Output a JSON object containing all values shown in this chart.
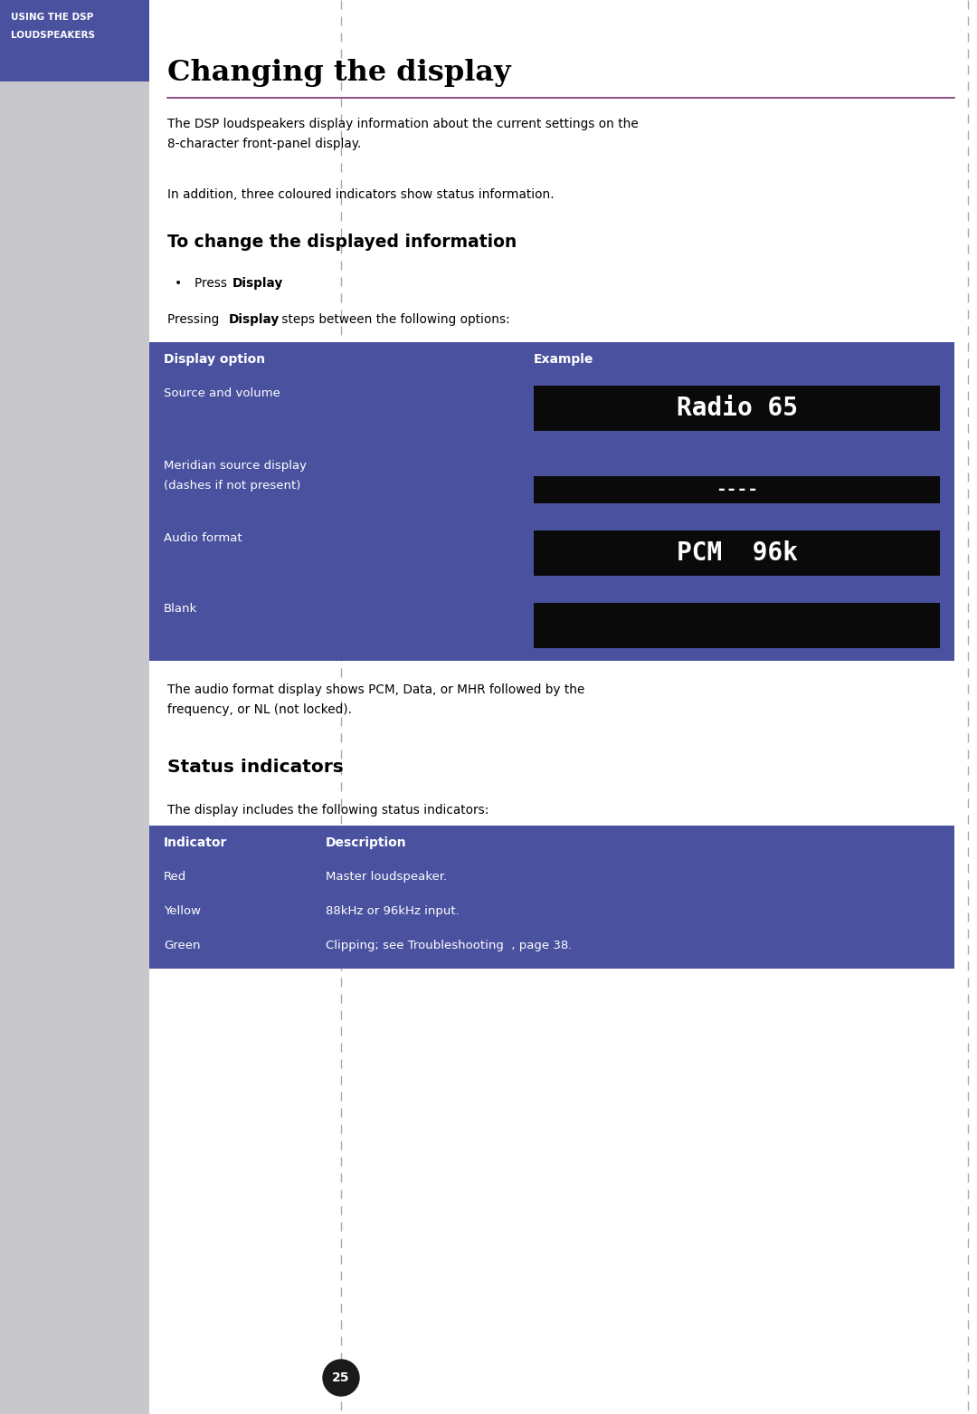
{
  "page_bg": "#ffffff",
  "left_sidebar_color": "#c8c8cc",
  "header_box_color": "#4a52a0",
  "header_text_line1": "USING THE DSP",
  "header_text_line2": "LOUDSPEAKERS",
  "header_text_color": "#ffffff",
  "title": "Changing the display",
  "title_color": "#000000",
  "section_line_color": "#7a3070",
  "body_text_color": "#000000",
  "para1_line1": "The DSP loudspeakers display information about the current settings on the",
  "para1_line2": "8-character front-panel display.",
  "para2": "In addition, three coloured indicators show status information.",
  "subsection_title": "To change the displayed information",
  "audio_format_note_line1": "The audio format display shows PCM, Data, or MHR followed by the",
  "audio_format_note_line2": "frequency, or NL (not locked).",
  "status_title": "Status indicators",
  "status_intro": "The display includes the following status indicators:",
  "table1_bg": "#4a52a0",
  "table1_header_col1": "Display option",
  "table1_header_col2": "Example",
  "table1_text_color": "#ffffff",
  "display_box_bg": "#0a0a0a",
  "display_text_color": "#ffffff",
  "table2_bg": "#4a52a0",
  "table2_header_col1": "Indicator",
  "table2_header_col2": "Description",
  "table2_text_color": "#ffffff",
  "table2_rows": [
    {
      "col1": "Red",
      "col2": "Master loudspeaker."
    },
    {
      "col1": "Yellow",
      "col2": "88kHz or 96kHz input."
    },
    {
      "col1": "Green",
      "col2": "Clipping; see Troubleshooting  , page 38."
    }
  ],
  "dotted_line_color": "#aaaaaa",
  "page_number": "25",
  "page_number_bg": "#1a1a1a",
  "page_number_color": "#ffffff",
  "fig_width": 10.8,
  "fig_height": 15.62,
  "dpi": 100
}
